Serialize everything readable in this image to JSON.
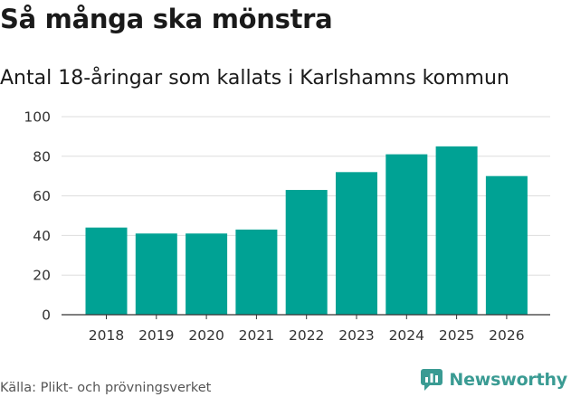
{
  "header": {
    "title": "Så många ska mönstra",
    "subtitle": "Antal 18-åringar som kallats i Karlshamns kommun"
  },
  "footer": {
    "source": "Källa: Plikt- och prövningsverket",
    "brand": "Newsworthy",
    "brand_icon": "newsworthy-chart-logo-icon"
  },
  "colors": {
    "bar": "#00a294",
    "grid": "#dddddd",
    "axis": "#333333",
    "brand": "#3a9b93"
  },
  "chart_data": {
    "type": "bar",
    "title": "Antal 18-åringar som kallats i Karlshamns kommun",
    "categories": [
      "2018",
      "2019",
      "2020",
      "2021",
      "2022",
      "2023",
      "2024",
      "2025",
      "2026"
    ],
    "values": [
      44,
      41,
      41,
      43,
      63,
      72,
      81,
      85,
      70
    ],
    "ylim": [
      0,
      100
    ],
    "yticks": [
      0,
      20,
      40,
      60,
      80,
      100
    ],
    "xlabel": "",
    "ylabel": "",
    "grid": true,
    "legend": "none"
  }
}
